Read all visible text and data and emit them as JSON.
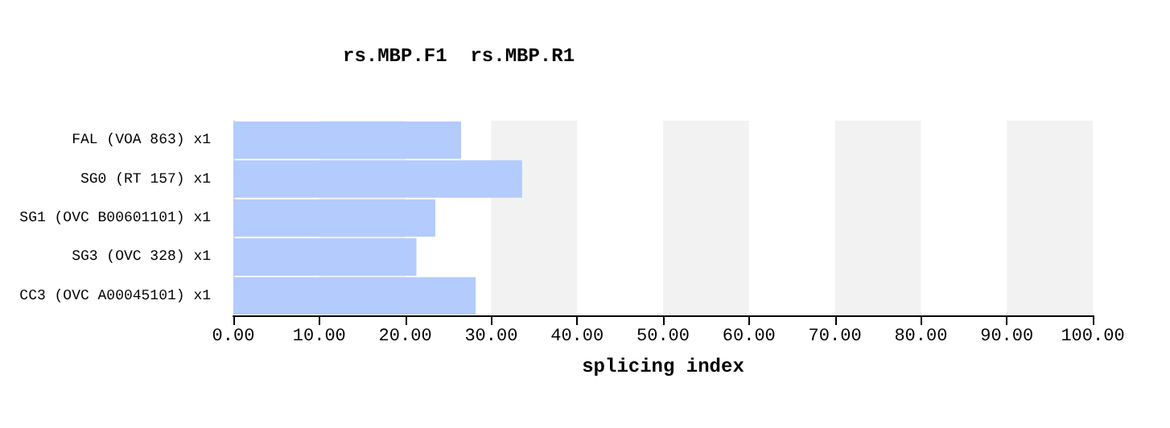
{
  "chart_data": {
    "type": "bar",
    "orientation": "horizontal",
    "title": "rs.MBP.F1  rs.MBP.R1",
    "xlabel": "splicing index",
    "categories": [
      "FAL (VOA 863) x1",
      "SG0 (RT 157) x1",
      "SG1 (OVC B00601101) x1",
      "SG3 (OVC 328) x1",
      "CC3 (OVC A00045101) x1"
    ],
    "values": [
      26.5,
      33.6,
      23.5,
      21.3,
      28.2
    ],
    "color": "#b3cbfd",
    "xlim": [
      0,
      100
    ],
    "xticks": [
      {
        "value": 0,
        "label": "0.00"
      },
      {
        "value": 10,
        "label": "10.00"
      },
      {
        "value": 20,
        "label": "20.00"
      },
      {
        "value": 30,
        "label": "30.00"
      },
      {
        "value": 40,
        "label": "40.00"
      },
      {
        "value": 50,
        "label": "50.00"
      },
      {
        "value": 60,
        "label": "60.00"
      },
      {
        "value": 70,
        "label": "70.00"
      },
      {
        "value": 80,
        "label": "80.00"
      },
      {
        "value": 90,
        "label": "90.00"
      },
      {
        "value": 100,
        "label": "100.00"
      }
    ],
    "bands": [
      {
        "axis": "x",
        "from": 10,
        "to": 20,
        "color": "#f2f2f2"
      },
      {
        "axis": "x",
        "from": 30,
        "to": 40,
        "color": "#f2f2f2"
      },
      {
        "axis": "x",
        "from": 50,
        "to": 60,
        "color": "#f2f2f2"
      },
      {
        "axis": "x",
        "from": 70,
        "to": 80,
        "color": "#f2f2f2"
      },
      {
        "axis": "x",
        "from": 90,
        "to": 100,
        "color": "#f2f2f2"
      }
    ]
  }
}
